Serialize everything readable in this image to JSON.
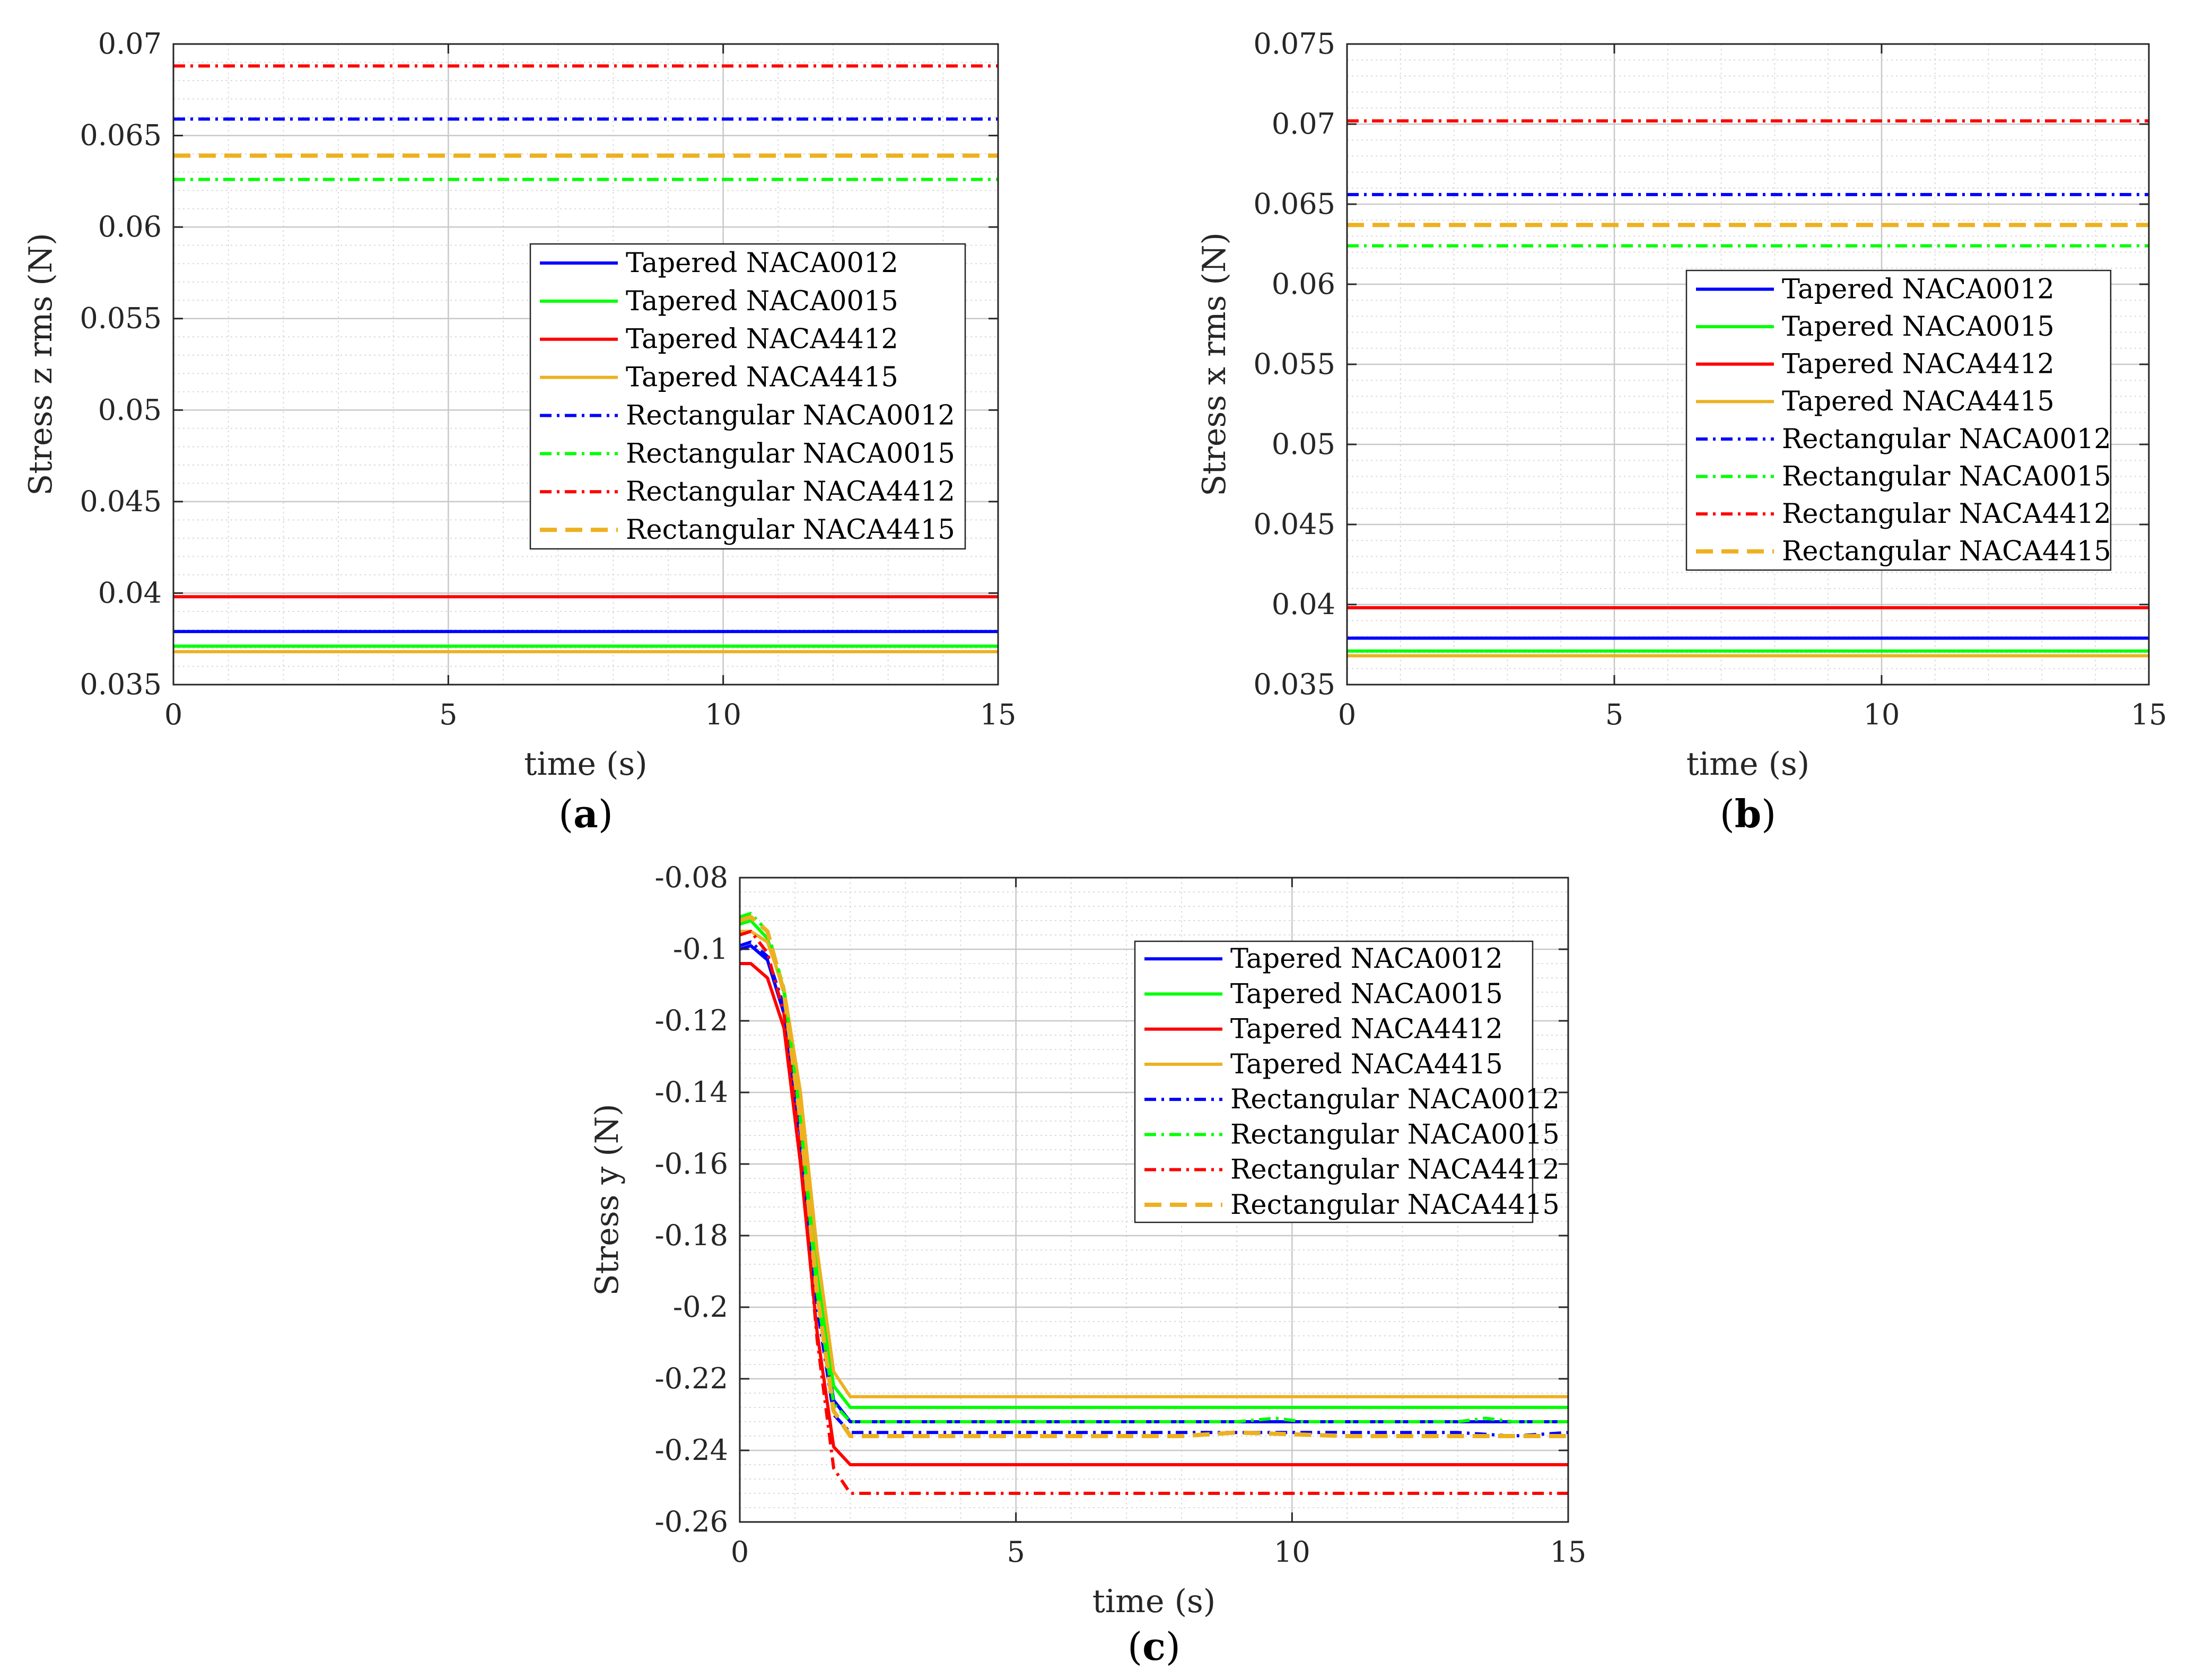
{
  "colors": {
    "blue": "#0000ff",
    "green": "#00ff00",
    "red": "#ff0000",
    "orange": "#edb120",
    "axis": "#262626",
    "grid": "#d9d9d9"
  },
  "legend_entries": [
    {
      "label": "Tapered NACA0012",
      "color": "#0000ff",
      "style": "solid"
    },
    {
      "label": "Tapered NACA0015",
      "color": "#00ff00",
      "style": "solid"
    },
    {
      "label": "Tapered NACA4412",
      "color": "#ff0000",
      "style": "solid"
    },
    {
      "label": "Tapered NACA4415",
      "color": "#edb120",
      "style": "solid"
    },
    {
      "label": "Rectangular NACA0012",
      "color": "#0000ff",
      "style": "dashdot"
    },
    {
      "label": "Rectangular NACA0015",
      "color": "#00ff00",
      "style": "dashdot"
    },
    {
      "label": "Rectangular NACA4412",
      "color": "#ff0000",
      "style": "dashdot"
    },
    {
      "label": "Rectangular NACA4415",
      "color": "#edb120",
      "style": "dashed"
    }
  ],
  "chart_data": [
    {
      "id": "a",
      "type": "line",
      "panel_label": "a",
      "xlabel": "time (s)",
      "ylabel": "Stress z rms (N)",
      "xlim": [
        0,
        15
      ],
      "ylim": [
        0.035,
        0.07
      ],
      "xticks": [
        0,
        5,
        10,
        15
      ],
      "yticks": [
        0.035,
        0.04,
        0.045,
        0.05,
        0.055,
        0.06,
        0.065,
        0.07
      ],
      "ytick_labels": [
        "0.035",
        "0.04",
        "0.045",
        "0.05",
        "0.055",
        "0.06",
        "0.065",
        "0.07"
      ],
      "grid": true,
      "legend_location": "right-middle",
      "series": [
        {
          "name": "Tapered NACA0012",
          "x": [
            0,
            15
          ],
          "y": [
            0.0379,
            0.0379
          ]
        },
        {
          "name": "Tapered NACA0015",
          "x": [
            0,
            15
          ],
          "y": [
            0.0371,
            0.0371
          ]
        },
        {
          "name": "Tapered NACA4412",
          "x": [
            0,
            15
          ],
          "y": [
            0.0398,
            0.0398
          ]
        },
        {
          "name": "Tapered NACA4415",
          "x": [
            0,
            15
          ],
          "y": [
            0.0368,
            0.0368
          ]
        },
        {
          "name": "Rectangular NACA0012",
          "x": [
            0,
            15
          ],
          "y": [
            0.0659,
            0.0659
          ]
        },
        {
          "name": "Rectangular NACA0015",
          "x": [
            0,
            15
          ],
          "y": [
            0.0626,
            0.0626
          ]
        },
        {
          "name": "Rectangular NACA4412",
          "x": [
            0,
            15
          ],
          "y": [
            0.0688,
            0.0688
          ]
        },
        {
          "name": "Rectangular NACA4415",
          "x": [
            0,
            15
          ],
          "y": [
            0.0639,
            0.0639
          ]
        }
      ]
    },
    {
      "id": "b",
      "type": "line",
      "panel_label": "b",
      "xlabel": "time (s)",
      "ylabel": "Stress x rms (N)",
      "xlim": [
        0,
        15
      ],
      "ylim": [
        0.035,
        0.075
      ],
      "xticks": [
        0,
        5,
        10,
        15
      ],
      "yticks": [
        0.035,
        0.04,
        0.045,
        0.05,
        0.055,
        0.06,
        0.065,
        0.07,
        0.075
      ],
      "ytick_labels": [
        "0.035",
        "0.04",
        "0.045",
        "0.05",
        "0.055",
        "0.06",
        "0.065",
        "0.07",
        "0.075"
      ],
      "grid": true,
      "legend_location": "right-middle",
      "series": [
        {
          "name": "Tapered NACA0012",
          "x": [
            0,
            15
          ],
          "y": [
            0.0379,
            0.0379
          ]
        },
        {
          "name": "Tapered NACA0015",
          "x": [
            0,
            15
          ],
          "y": [
            0.0371,
            0.0371
          ]
        },
        {
          "name": "Tapered NACA4412",
          "x": [
            0,
            15
          ],
          "y": [
            0.0398,
            0.0398
          ]
        },
        {
          "name": "Tapered NACA4415",
          "x": [
            0,
            15
          ],
          "y": [
            0.0368,
            0.0368
          ]
        },
        {
          "name": "Rectangular NACA0012",
          "x": [
            0,
            15
          ],
          "y": [
            0.0656,
            0.0656
          ]
        },
        {
          "name": "Rectangular NACA0015",
          "x": [
            0,
            15
          ],
          "y": [
            0.0624,
            0.0624
          ]
        },
        {
          "name": "Rectangular NACA4412",
          "x": [
            0,
            15
          ],
          "y": [
            0.0702,
            0.0702
          ]
        },
        {
          "name": "Rectangular NACA4415",
          "x": [
            0,
            15
          ],
          "y": [
            0.0637,
            0.0637
          ]
        }
      ]
    },
    {
      "id": "c",
      "type": "line",
      "panel_label": "c",
      "xlabel": "time (s)",
      "ylabel": "Stress y (N)",
      "xlim": [
        0,
        15
      ],
      "ylim": [
        -0.26,
        -0.08
      ],
      "xticks": [
        0,
        5,
        10,
        15
      ],
      "yticks": [
        -0.26,
        -0.24,
        -0.22,
        -0.2,
        -0.18,
        -0.16,
        -0.14,
        -0.12,
        -0.1,
        -0.08
      ],
      "ytick_labels": [
        "-0.26",
        "-0.24",
        "-0.22",
        "-0.2",
        "-0.18",
        "-0.16",
        "-0.14",
        "-0.12",
        "-0.1",
        "-0.08"
      ],
      "grid": true,
      "legend_location": "top-right",
      "series": [
        {
          "name": "Tapered NACA0012",
          "x": [
            0,
            0.2,
            0.5,
            0.8,
            1.1,
            1.4,
            1.7,
            2.0,
            15
          ],
          "y": [
            -0.1,
            -0.099,
            -0.103,
            -0.118,
            -0.152,
            -0.197,
            -0.226,
            -0.232,
            -0.232
          ]
        },
        {
          "name": "Tapered NACA0015",
          "x": [
            0,
            0.2,
            0.5,
            0.8,
            1.1,
            1.4,
            1.7,
            2.0,
            15
          ],
          "y": [
            -0.093,
            -0.092,
            -0.097,
            -0.112,
            -0.146,
            -0.191,
            -0.222,
            -0.228,
            -0.228
          ]
        },
        {
          "name": "Tapered NACA4412",
          "x": [
            0,
            0.2,
            0.5,
            0.8,
            1.1,
            1.4,
            1.7,
            2.0,
            15
          ],
          "y": [
            -0.104,
            -0.104,
            -0.108,
            -0.122,
            -0.16,
            -0.207,
            -0.239,
            -0.244,
            -0.244
          ]
        },
        {
          "name": "Tapered NACA4415",
          "x": [
            0,
            0.2,
            0.5,
            0.8,
            1.1,
            1.4,
            1.7,
            2.0,
            15
          ],
          "y": [
            -0.095,
            -0.095,
            -0.098,
            -0.111,
            -0.14,
            -0.184,
            -0.218,
            -0.225,
            -0.225
          ]
        },
        {
          "name": "Rectangular NACA0012",
          "x": [
            0,
            0.2,
            0.5,
            0.8,
            1.1,
            1.4,
            1.7,
            2.0,
            6,
            9,
            10,
            11,
            13,
            14,
            15
          ],
          "y": [
            -0.099,
            -0.098,
            -0.102,
            -0.116,
            -0.153,
            -0.2,
            -0.23,
            -0.235,
            -0.235,
            -0.235,
            -0.235,
            -0.235,
            -0.235,
            -0.236,
            -0.235
          ]
        },
        {
          "name": "Rectangular NACA0015",
          "x": [
            0,
            0.2,
            0.5,
            0.8,
            1.1,
            1.4,
            1.7,
            2.0,
            9,
            9.7,
            10.2,
            13,
            13.5,
            14,
            15
          ],
          "y": [
            -0.091,
            -0.09,
            -0.095,
            -0.111,
            -0.148,
            -0.196,
            -0.227,
            -0.232,
            -0.232,
            -0.231,
            -0.232,
            -0.232,
            -0.231,
            -0.232,
            -0.232
          ]
        },
        {
          "name": "Rectangular NACA4412",
          "x": [
            0,
            0.2,
            0.5,
            0.8,
            1.1,
            1.4,
            1.7,
            2.0,
            15
          ],
          "y": [
            -0.096,
            -0.095,
            -0.101,
            -0.118,
            -0.157,
            -0.209,
            -0.245,
            -0.252,
            -0.252
          ]
        },
        {
          "name": "Rectangular NACA4415",
          "x": [
            0,
            0.2,
            0.5,
            0.8,
            1.1,
            1.4,
            1.7,
            2.0,
            8,
            9,
            11,
            15
          ],
          "y": [
            -0.092,
            -0.091,
            -0.095,
            -0.112,
            -0.148,
            -0.196,
            -0.229,
            -0.236,
            -0.236,
            -0.235,
            -0.236,
            -0.236
          ]
        }
      ]
    }
  ]
}
